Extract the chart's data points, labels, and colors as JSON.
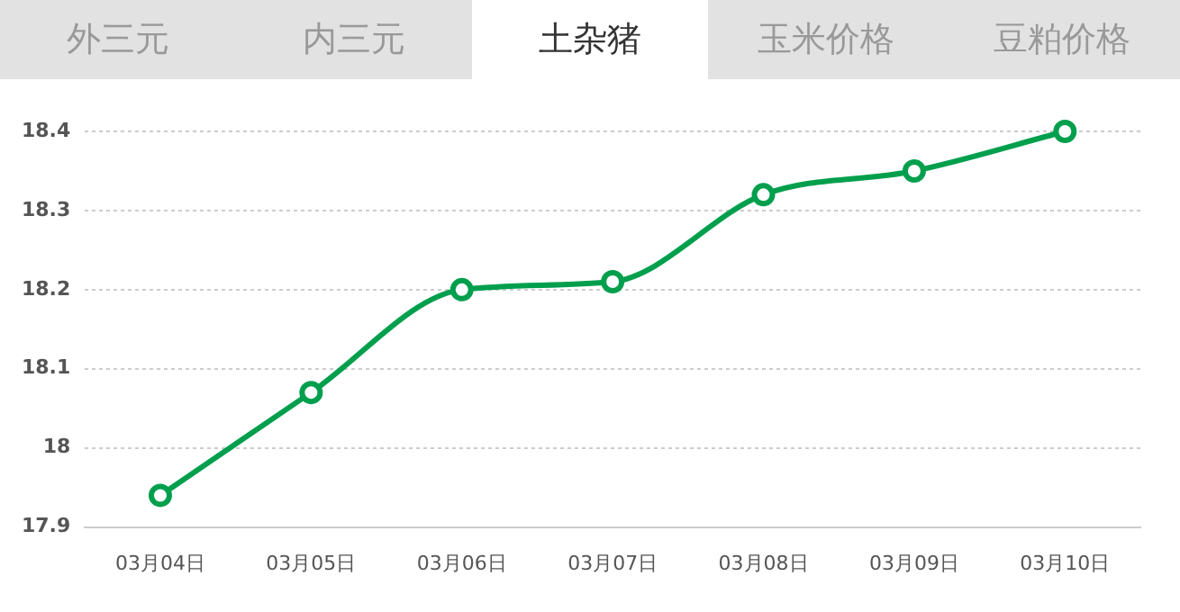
{
  "chart_data": {
    "type": "line",
    "title": "土杂猪",
    "annotations": [
      "外三元",
      "内三元",
      "玉米价格",
      "豆粕价格"
    ],
    "categories": [
      "03月04日",
      "03月05日",
      "03月06日",
      "03月07日",
      "03月08日",
      "03月09日",
      "03月10日"
    ],
    "series": [
      {
        "color": "#009f4d",
        "values": [
          17.94,
          18.07,
          18.2,
          18.21,
          18.32,
          18.35,
          18.4
        ]
      }
    ],
    "ylim": [
      17.9,
      18.4
    ],
    "yticks": [
      17.9,
      18,
      18.1,
      18.2,
      18.3,
      18.4
    ],
    "grid": "y",
    "legend": false,
    "marker": "circle",
    "line_style": "solid"
  }
}
